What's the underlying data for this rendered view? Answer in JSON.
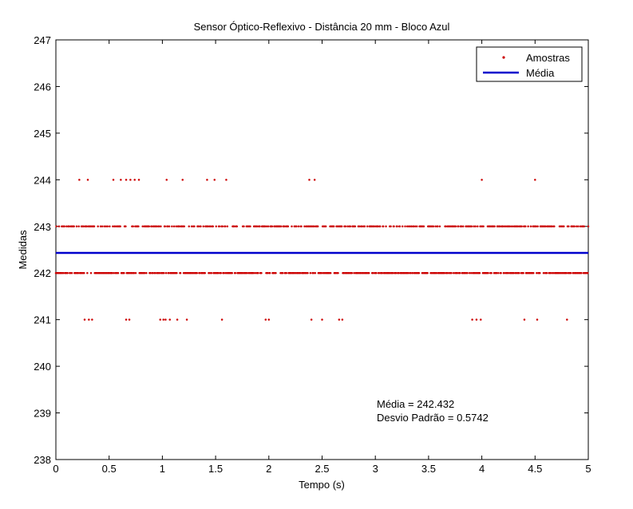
{
  "chart_data": {
    "type": "scatter",
    "title": "Sensor Óptico-Reflexivo - Distância 20 mm - Bloco Azul",
    "xlabel": "Tempo (s)",
    "ylabel": "Medidas",
    "xlim": [
      0,
      5
    ],
    "ylim": [
      238,
      247
    ],
    "xticks": [
      "0",
      "0.5",
      "1",
      "1.5",
      "2",
      "2.5",
      "3",
      "3.5",
      "4",
      "4.5",
      "5"
    ],
    "yticks": [
      "238",
      "239",
      "240",
      "241",
      "242",
      "243",
      "244",
      "245",
      "246",
      "247"
    ],
    "grid": false,
    "legend_position": "top-right",
    "sample_interval": 0.005,
    "series": [
      {
        "name": "Amostras",
        "color": "#cc0000",
        "marker": "dot",
        "levels": [
          241,
          242,
          243,
          244
        ],
        "rare_points": {
          "241": [
            0.27,
            0.31,
            0.34,
            0.66,
            0.69,
            0.98,
            1.01,
            1.03,
            1.07,
            1.14,
            1.23,
            1.56,
            1.97,
            2.0,
            2.4,
            2.5,
            2.66,
            2.69,
            3.91,
            3.95,
            3.99,
            4.4,
            4.52,
            4.8
          ],
          "244": [
            0.22,
            0.3,
            0.54,
            0.61,
            0.66,
            0.7,
            0.74,
            0.78,
            1.04,
            1.19,
            1.42,
            1.49,
            1.6,
            2.38,
            2.43,
            4.0,
            4.5
          ]
        }
      },
      {
        "name": "Média",
        "color": "#0000cc",
        "type": "line",
        "value": 242.432
      }
    ],
    "annotations": [
      "Média = 242.432",
      "Desvio Padrão = 0.5742"
    ]
  }
}
